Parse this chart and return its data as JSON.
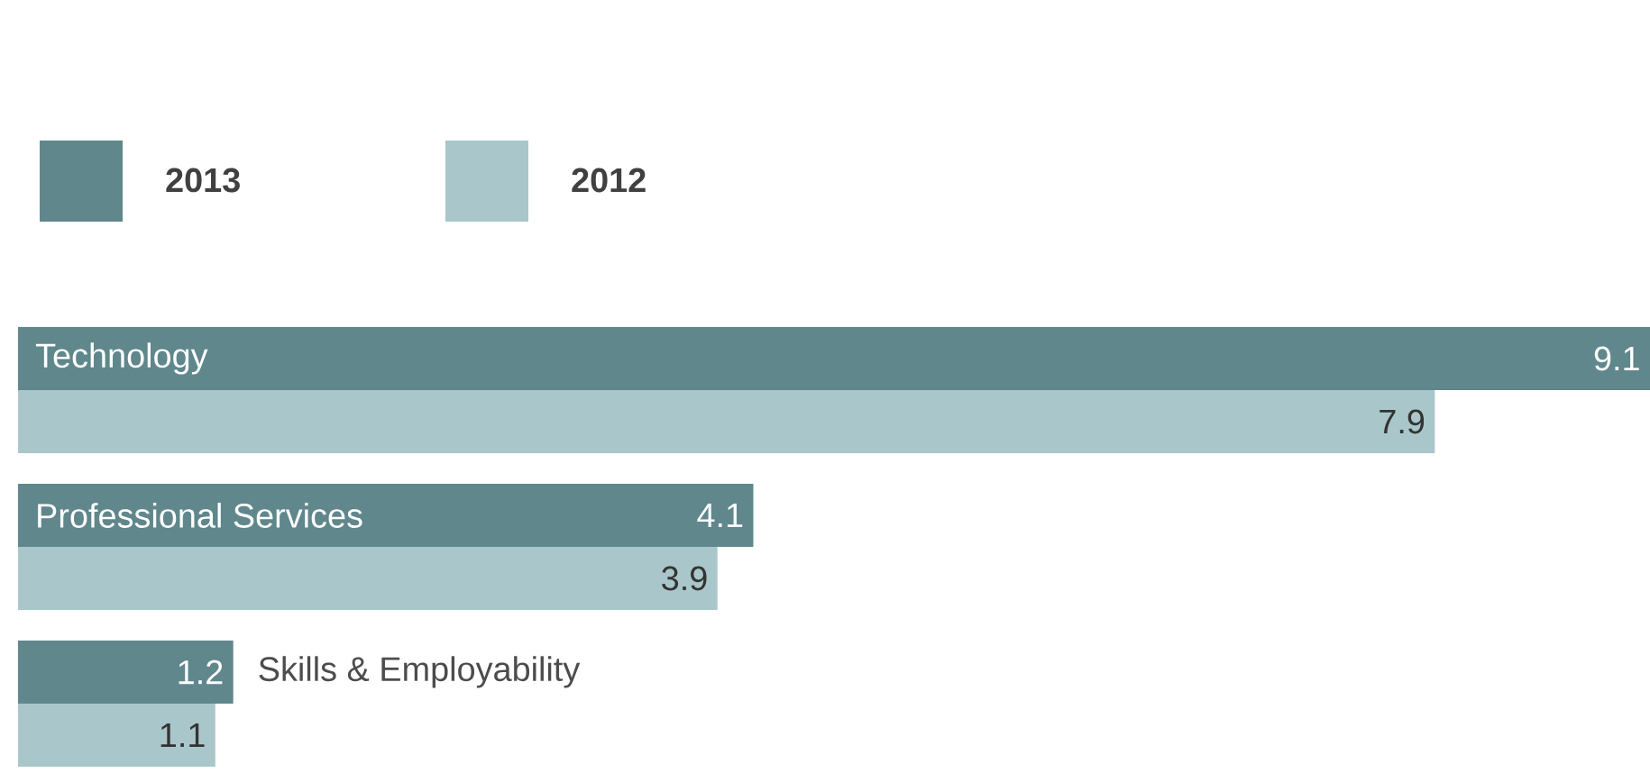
{
  "chart_data": {
    "type": "bar",
    "orientation": "horizontal",
    "categories": [
      "Technology",
      "Professional Services",
      "Skills & Employability"
    ],
    "series": [
      {
        "name": "2013",
        "color": "#5f878c",
        "values": [
          9.1,
          4.1,
          1.2
        ],
        "value_labels": [
          "9.1",
          "4.1",
          "1.2"
        ]
      },
      {
        "name": "2012",
        "color": "#a9c7ca",
        "values": [
          7.9,
          3.9,
          1.1
        ],
        "value_labels": [
          "7.9",
          "3.9",
          "1.1"
        ]
      }
    ],
    "legend": "top left"
  }
}
